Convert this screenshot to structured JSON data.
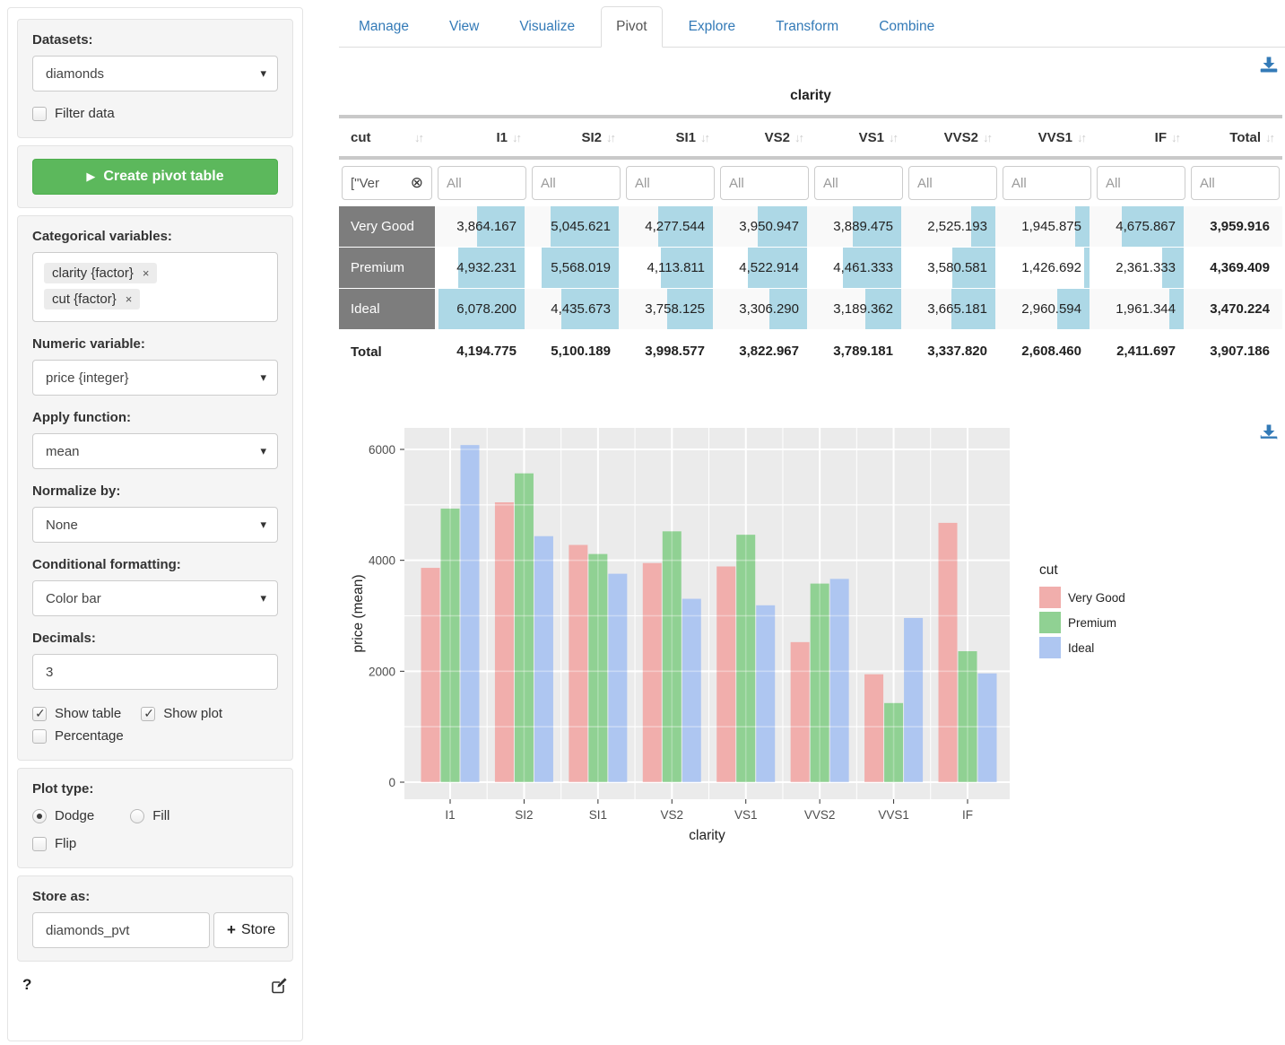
{
  "tabs": {
    "items": [
      "Manage",
      "View",
      "Visualize",
      "Pivot",
      "Explore",
      "Transform",
      "Combine"
    ],
    "active": "Pivot"
  },
  "icons": {
    "sort": "↓↑",
    "caret": "▾",
    "tag_remove": "×",
    "filter_clear": "⊗",
    "play": "▶",
    "plus": "+",
    "help": "?"
  },
  "sidebar": {
    "datasets_label": "Datasets:",
    "dataset_value": "diamonds",
    "filter_data_label": "Filter data",
    "create_button": "Create pivot table",
    "categorical_label": "Categorical variables:",
    "categorical_tags": [
      "clarity {factor}",
      "cut {factor}"
    ],
    "numeric_label": "Numeric variable:",
    "numeric_value": "price {integer}",
    "apply_label": "Apply function:",
    "apply_value": "mean",
    "normalize_label": "Normalize by:",
    "normalize_value": "None",
    "cond_label": "Conditional formatting:",
    "cond_value": "Color bar",
    "decimals_label": "Decimals:",
    "decimals_value": "3",
    "show_table_label": "Show table",
    "show_plot_label": "Show plot",
    "percentage_label": "Percentage",
    "plot_type_label": "Plot type:",
    "dodge_label": "Dodge",
    "fill_label": "Fill",
    "flip_label": "Flip",
    "store_label": "Store as:",
    "store_value": "diamonds_pvt",
    "store_button": "Store",
    "checkbox_states": {
      "filter_data": false,
      "show_table": true,
      "show_plot": true,
      "percentage": false,
      "flip": false
    },
    "plot_type_selected": "Dodge"
  },
  "pivot": {
    "group_header": "clarity",
    "row_dim": "cut",
    "columns": [
      "I1",
      "SI2",
      "SI1",
      "VS2",
      "VS1",
      "VVS2",
      "VVS1",
      "IF",
      "Total"
    ],
    "filter_value": "[\"Ver",
    "filter_placeholder": "All",
    "colorbar_color": "#ADD8E6",
    "rows": [
      {
        "label": "Very Good",
        "values": [
          "3,864.167",
          "5,045.621",
          "4,277.544",
          "3,950.947",
          "3,889.475",
          "2,525.193",
          "1,945.875",
          "4,675.867",
          "3,959.916"
        ]
      },
      {
        "label": "Premium",
        "values": [
          "4,932.231",
          "5,568.019",
          "4,113.811",
          "4,522.914",
          "4,461.333",
          "3,580.581",
          "1,426.692",
          "2,361.333",
          "4,369.409"
        ]
      },
      {
        "label": "Ideal",
        "values": [
          "6,078.200",
          "4,435.673",
          "3,758.125",
          "3,306.290",
          "3,189.362",
          "3,665.181",
          "2,960.594",
          "1,961.344",
          "3,470.224"
        ]
      }
    ],
    "total_row": {
      "label": "Total",
      "values": [
        "4,194.775",
        "5,100.189",
        "3,998.577",
        "3,822.967",
        "3,789.181",
        "3,337.820",
        "2,608.460",
        "2,411.697",
        "3,907.186"
      ]
    }
  },
  "chart_data": {
    "type": "bar",
    "categories": [
      "I1",
      "SI2",
      "SI1",
      "VS2",
      "VS1",
      "VVS2",
      "VVS1",
      "IF"
    ],
    "series": [
      {
        "name": "Very Good",
        "color": "#F1AEAC",
        "values": [
          3864.167,
          5045.621,
          4277.544,
          3950.947,
          3889.475,
          2525.193,
          1945.875,
          4675.867
        ]
      },
      {
        "name": "Premium",
        "color": "#90D193",
        "values": [
          4932.231,
          5568.019,
          4113.811,
          4522.914,
          4461.333,
          3580.581,
          1426.692,
          2361.333
        ]
      },
      {
        "name": "Ideal",
        "color": "#AEC6F1",
        "values": [
          6078.2,
          4435.673,
          3758.125,
          3306.29,
          3189.362,
          3665.181,
          2960.594,
          1961.344
        ]
      }
    ],
    "title": "",
    "xlabel": "clarity",
    "ylabel": "price (mean)",
    "yticks": [
      0,
      2000,
      4000,
      6000
    ],
    "ylim": [
      -307,
      6390
    ],
    "legend_title": "cut",
    "legend_position": "right",
    "grid": true,
    "panel_bg": "#EBEBEB",
    "grid_color": "#FFFFFF",
    "accent_blue": "#337AB7"
  }
}
